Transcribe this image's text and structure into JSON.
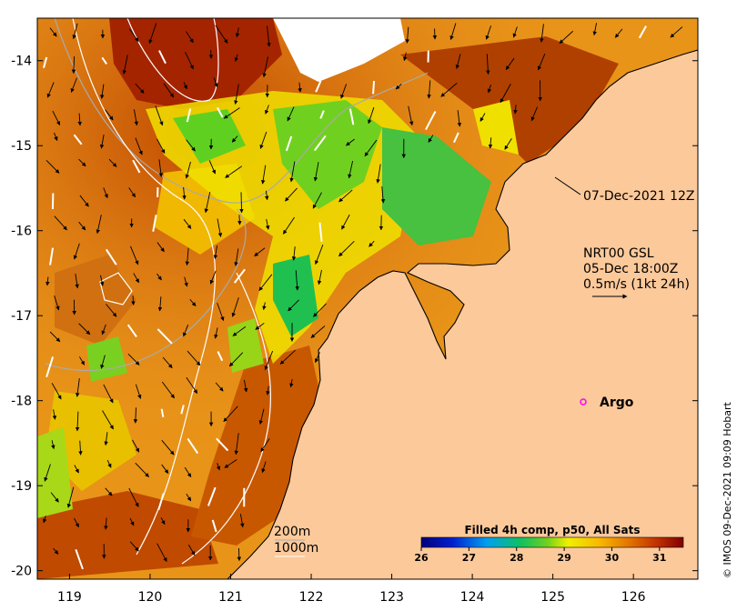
{
  "map": {
    "x_ticks": [
      "119",
      "120",
      "121",
      "122",
      "123",
      "124",
      "125",
      "126"
    ],
    "y_ticks": [
      "-14",
      "-15",
      "-16",
      "-17",
      "-18",
      "-19",
      "-20"
    ],
    "lon_range": [
      118.6,
      126.8
    ],
    "lat_range": [
      -13.5,
      -20.1
    ]
  },
  "annotations": {
    "timestamp": "07-Dec-2021 12Z",
    "product_line1": "NRT00 GSL",
    "product_line2": "05-Dec 18:00Z",
    "product_line3": "0.5m/s (1kt 24h)",
    "argo_label": "Argo",
    "contour_200": "200m",
    "contour_1000": "1000m"
  },
  "colorbar": {
    "title": "Filled 4h comp, p50, All Sats",
    "ticks": [
      "26",
      "27",
      "28",
      "29",
      "30",
      "31"
    ],
    "range": [
      26,
      31.5
    ]
  },
  "credit": "© IMOS 09-Dec-2021 09:09 Hobart",
  "colors": {
    "land": "#fcc99a",
    "sst_cold": "#000080",
    "sst_warm": "#800000",
    "argo_marker": "#ff00ff"
  }
}
